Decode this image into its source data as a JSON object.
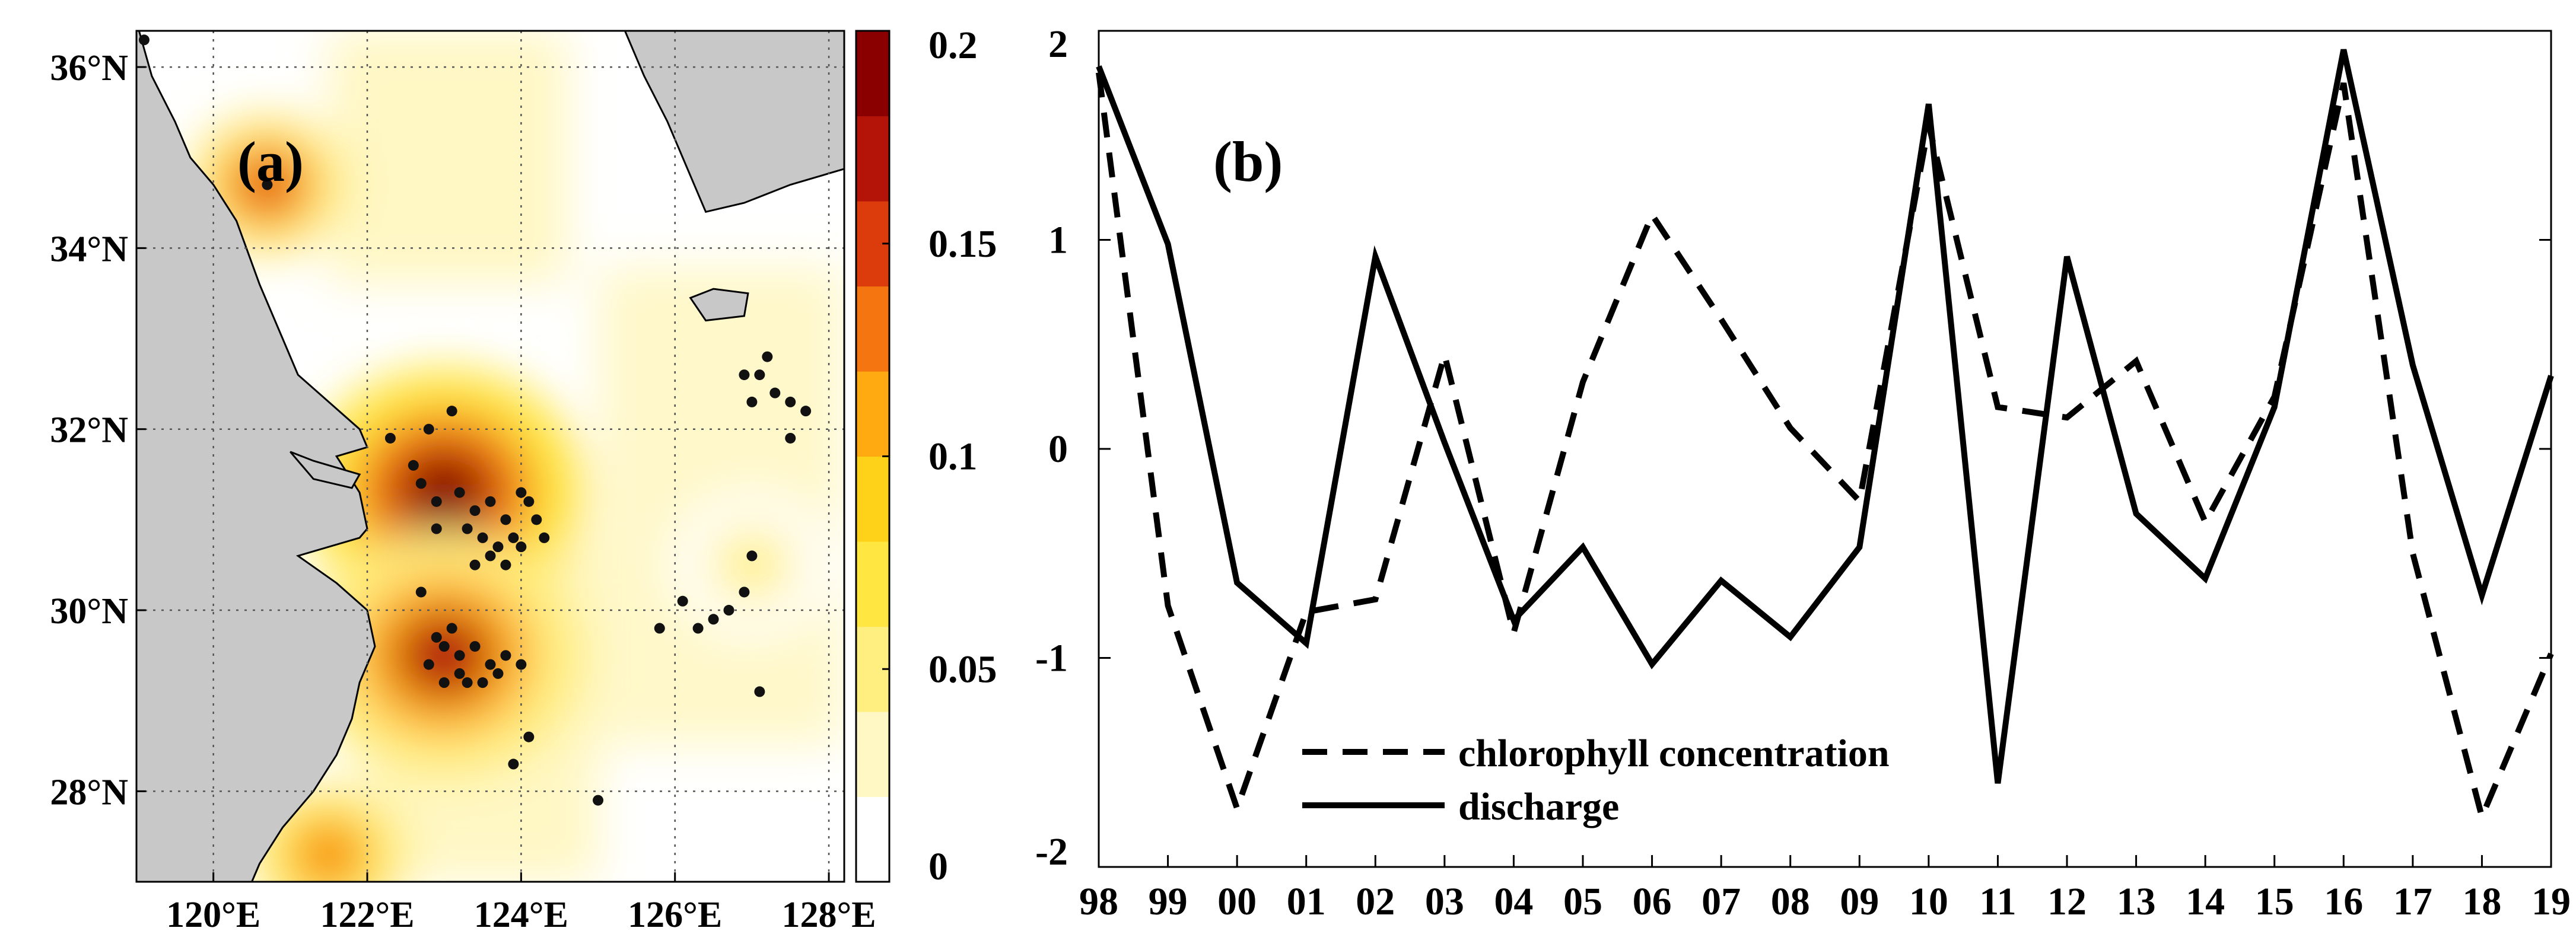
{
  "colors": {
    "land": "#c8c8c8",
    "coastline": "#000000",
    "station": "#111111",
    "text": "#000000",
    "colormap": [
      "#ffffff",
      "#fff7c4",
      "#ffee80",
      "#ffe640",
      "#ffd21a",
      "#ffaa10",
      "#f57510",
      "#dc3c0c",
      "#b41408",
      "#8a0000"
    ]
  },
  "chart_data": [
    {
      "type": "heatmap",
      "panel_label": "(a)",
      "description_kind": "map",
      "xlim": [
        119,
        128.2
      ],
      "ylim": [
        27,
        36.4
      ],
      "x_ticks": [
        120,
        122,
        124,
        126,
        128
      ],
      "x_tick_labels": [
        "120°E",
        "122°E",
        "124°E",
        "126°E",
        "128°E"
      ],
      "y_ticks": [
        28,
        30,
        32,
        34,
        36
      ],
      "y_tick_labels": [
        "28°N",
        "30°N",
        "32°N",
        "34°N",
        "36°N"
      ],
      "grid": true,
      "colorbar": {
        "range": [
          0,
          0.2
        ],
        "ticks": [
          0,
          0.05,
          0.1,
          0.15,
          0.2
        ],
        "tick_labels": [
          "0",
          "0.05",
          "0.1",
          "0.15",
          "0.2"
        ]
      },
      "hotspots": [
        {
          "lon": 123.0,
          "lat": 31.3,
          "value": 0.2
        },
        {
          "lon": 123.0,
          "lat": 29.5,
          "value": 0.17
        },
        {
          "lon": 120.7,
          "lat": 34.7,
          "value": 0.15
        },
        {
          "lon": 121.5,
          "lat": 27.3,
          "value": 0.13
        },
        {
          "lon": 127.0,
          "lat": 30.5,
          "value": 0.05
        }
      ],
      "stations": [
        {
          "lon": 119.1,
          "lat": 36.3
        },
        {
          "lon": 120.7,
          "lat": 34.7
        },
        {
          "lon": 122.3,
          "lat": 31.9
        },
        {
          "lon": 122.6,
          "lat": 31.6
        },
        {
          "lon": 122.8,
          "lat": 32.0
        },
        {
          "lon": 123.1,
          "lat": 32.2
        },
        {
          "lon": 122.7,
          "lat": 31.4
        },
        {
          "lon": 122.9,
          "lat": 31.2
        },
        {
          "lon": 123.2,
          "lat": 31.3
        },
        {
          "lon": 123.4,
          "lat": 31.1
        },
        {
          "lon": 123.6,
          "lat": 31.2
        },
        {
          "lon": 123.8,
          "lat": 31.0
        },
        {
          "lon": 124.0,
          "lat": 31.3
        },
        {
          "lon": 124.2,
          "lat": 31.0
        },
        {
          "lon": 124.3,
          "lat": 30.8
        },
        {
          "lon": 123.3,
          "lat": 30.9
        },
        {
          "lon": 123.5,
          "lat": 30.8
        },
        {
          "lon": 123.7,
          "lat": 30.7
        },
        {
          "lon": 123.9,
          "lat": 30.8
        },
        {
          "lon": 123.4,
          "lat": 30.5
        },
        {
          "lon": 123.6,
          "lat": 30.6
        },
        {
          "lon": 123.8,
          "lat": 30.5
        },
        {
          "lon": 124.0,
          "lat": 30.7
        },
        {
          "lon": 122.9,
          "lat": 30.9
        },
        {
          "lon": 124.1,
          "lat": 31.2
        },
        {
          "lon": 122.7,
          "lat": 30.2
        },
        {
          "lon": 122.8,
          "lat": 29.4
        },
        {
          "lon": 123.0,
          "lat": 29.6
        },
        {
          "lon": 123.2,
          "lat": 29.5
        },
        {
          "lon": 123.4,
          "lat": 29.6
        },
        {
          "lon": 123.6,
          "lat": 29.4
        },
        {
          "lon": 123.8,
          "lat": 29.5
        },
        {
          "lon": 124.0,
          "lat": 29.4
        },
        {
          "lon": 123.0,
          "lat": 29.2
        },
        {
          "lon": 123.2,
          "lat": 29.3
        },
        {
          "lon": 123.5,
          "lat": 29.2
        },
        {
          "lon": 123.7,
          "lat": 29.3
        },
        {
          "lon": 122.9,
          "lat": 29.7
        },
        {
          "lon": 123.1,
          "lat": 29.8
        },
        {
          "lon": 123.3,
          "lat": 29.2
        },
        {
          "lon": 124.1,
          "lat": 28.6
        },
        {
          "lon": 123.9,
          "lat": 28.3
        },
        {
          "lon": 125.0,
          "lat": 27.9
        },
        {
          "lon": 125.8,
          "lat": 29.8
        },
        {
          "lon": 126.1,
          "lat": 30.1
        },
        {
          "lon": 126.3,
          "lat": 29.8
        },
        {
          "lon": 126.5,
          "lat": 29.9
        },
        {
          "lon": 126.7,
          "lat": 30.0
        },
        {
          "lon": 126.9,
          "lat": 30.2
        },
        {
          "lon": 127.0,
          "lat": 30.6
        },
        {
          "lon": 127.1,
          "lat": 29.1
        },
        {
          "lon": 126.9,
          "lat": 32.6
        },
        {
          "lon": 127.1,
          "lat": 32.6
        },
        {
          "lon": 127.2,
          "lat": 32.8
        },
        {
          "lon": 127.3,
          "lat": 32.4
        },
        {
          "lon": 127.0,
          "lat": 32.3
        },
        {
          "lon": 127.5,
          "lat": 32.3
        },
        {
          "lon": 127.7,
          "lat": 32.2
        },
        {
          "lon": 127.5,
          "lat": 31.9
        }
      ]
    },
    {
      "type": "line",
      "panel_label": "(b)",
      "categories": [
        "98",
        "99",
        "00",
        "01",
        "02",
        "03",
        "04",
        "05",
        "06",
        "07",
        "08",
        "09",
        "10",
        "11",
        "12",
        "13",
        "14",
        "15",
        "16",
        "17",
        "18",
        "19"
      ],
      "ylim": [
        -2,
        2
      ],
      "y_ticks": [
        -2,
        -1,
        0,
        1,
        2
      ],
      "y_tick_labels": [
        "-2",
        "-1",
        "0",
        "1",
        "2"
      ],
      "grid": false,
      "legend_position": "bottom-center",
      "series": [
        {
          "name": "chlorophyll concentration",
          "style": "dashed",
          "values": [
            1.8,
            -0.75,
            -1.72,
            -0.78,
            -0.72,
            0.45,
            -0.88,
            0.32,
            1.12,
            0.62,
            0.1,
            -0.25,
            1.55,
            0.2,
            0.15,
            0.42,
            -0.35,
            0.25,
            1.75,
            -0.5,
            -1.76,
            -0.98
          ]
        },
        {
          "name": "discharge",
          "style": "solid",
          "values": [
            1.83,
            0.98,
            -0.64,
            -0.93,
            0.92,
            0.03,
            -0.82,
            -0.47,
            -1.03,
            -0.63,
            -0.9,
            -0.47,
            1.65,
            -1.6,
            0.92,
            -0.31,
            -0.62,
            0.2,
            1.91,
            0.4,
            -0.7,
            0.35
          ]
        }
      ]
    }
  ]
}
